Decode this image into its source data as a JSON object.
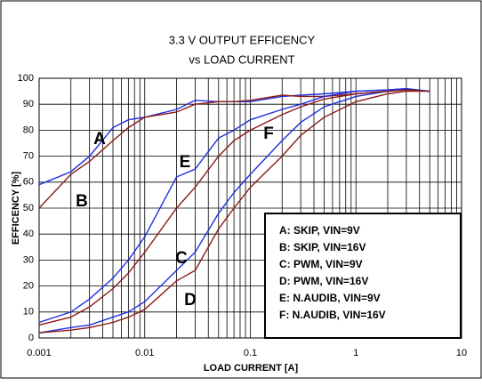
{
  "chart_data": {
    "type": "line",
    "title": "3.3 V OUTPUT EFFICENCY",
    "subtitle": "vs LOAD CURRENT",
    "x_label": "LOAD CURRENT [A]",
    "y_label": "EFFICENCY [%]",
    "x": [
      0.001,
      0.002,
      0.003,
      0.005,
      0.007,
      0.01,
      0.02,
      0.03,
      0.05,
      0.07,
      0.1,
      0.2,
      0.3,
      0.5,
      1,
      2,
      3,
      5
    ],
    "series": [
      {
        "name": "A: SKIP, VIN=9V",
        "color": "#1f2fe0",
        "values": [
          59,
          64,
          70,
          81,
          84,
          85,
          88,
          91.5,
          91,
          91,
          91,
          93,
          93.5,
          94,
          95,
          95.5,
          96,
          95
        ]
      },
      {
        "name": "B: SKIP, VIN=16V",
        "color": "#8b1a1a",
        "values": [
          50,
          63,
          68,
          76,
          81,
          85,
          87,
          90,
          91,
          91,
          91.5,
          93.5,
          93,
          93,
          94,
          95,
          95.5,
          95
        ]
      },
      {
        "name": "C: PWM, VIN=9V",
        "color": "#1f2fe0",
        "values": [
          2,
          4,
          5,
          8,
          10,
          14,
          26,
          33,
          48,
          56,
          63,
          76,
          83,
          89,
          93,
          95,
          95.5,
          95
        ]
      },
      {
        "name": "D: PWM, VIN=16V",
        "color": "#8b1a1a",
        "values": [
          2,
          3,
          4,
          6,
          8,
          11,
          22,
          26,
          42,
          50,
          58,
          70,
          78,
          85,
          91,
          94,
          95,
          95
        ]
      },
      {
        "name": "E: N.AUDIB, VIN=9V",
        "color": "#1f2fe0",
        "values": [
          6,
          10,
          15,
          23,
          30,
          39,
          62,
          65,
          77,
          80,
          84,
          88,
          90,
          93,
          95,
          95.5,
          96,
          95
        ]
      },
      {
        "name": "F: N.AUDIB, VIN=16V",
        "color": "#8b1a1a",
        "values": [
          5,
          8,
          12,
          19,
          25,
          33,
          50,
          58,
          70,
          76,
          80,
          86,
          89,
          92,
          94,
          95,
          95.5,
          95
        ]
      }
    ],
    "annotations": [
      "A",
      "B",
      "C",
      "D",
      "E",
      "F"
    ],
    "xlim": [
      0.001,
      10
    ],
    "xticks": [
      0.001,
      0.01,
      0.1,
      1,
      10
    ],
    "x_log": true,
    "ylim": [
      0,
      100
    ],
    "yticks": [
      0,
      10,
      20,
      30,
      40,
      50,
      60,
      70,
      80,
      90,
      100
    ],
    "grid": true,
    "legend": "lower right"
  }
}
